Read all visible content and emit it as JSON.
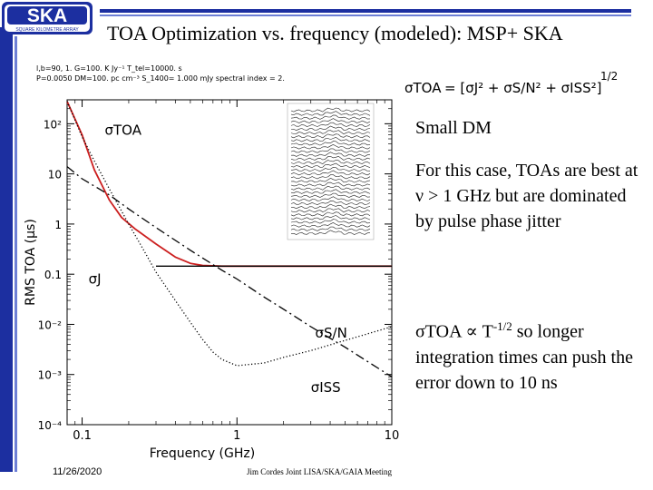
{
  "logo": {
    "text": "SKA",
    "subtext": "SQUARE KILOMETRE ARRAY"
  },
  "title": "TOA Optimization vs. frequency (modeled): MSP+ SKA",
  "formula": {
    "lhs": "σTOA",
    "rhs": "= [σJ² + σS/N² + σISS²]",
    "exponent": "1/2"
  },
  "side": {
    "heading": "Small DM",
    "para1": "For this case, TOAs are best at ν > 1 GHz but are dominated by pulse phase jitter",
    "para2_a": "σTOA ∝ T",
    "para2_sup": "-1/2",
    "para2_b": " so longer integration times can push the error down to 10 ns"
  },
  "footer": {
    "date": "11/26/2020",
    "middle": "Jim Cordes Joint LISA/SKA/GAIA Meeting"
  },
  "plot_header": {
    "line1": "l,b=90, 1.   G=100. K Jy⁻¹   T_tel=10000. s",
    "line2": "P=0.0050    DM=100. pc cm⁻³   S_1400=  1.000 mJy   spectral index = 2."
  },
  "chart_data": {
    "type": "line",
    "xscale": "log",
    "yscale": "log",
    "xlim": [
      0.08,
      10
    ],
    "ylim": [
      0.0001,
      300
    ],
    "xlabel": "Frequency (GHz)",
    "ylabel": "RMS TOA (μs)",
    "xticks": [
      {
        "v": 0.1,
        "label": "0.1"
      },
      {
        "v": 1,
        "label": "1"
      },
      {
        "v": 10,
        "label": "10"
      }
    ],
    "yticks": [
      {
        "v": 100,
        "label": "10²"
      },
      {
        "v": 10,
        "label": "10"
      },
      {
        "v": 1,
        "label": "1"
      },
      {
        "v": 0.1,
        "label": "0.1"
      },
      {
        "v": 0.01,
        "label": "10⁻²"
      },
      {
        "v": 0.001,
        "label": "10⁻³"
      },
      {
        "v": 0.0001,
        "label": "10⁻⁴"
      }
    ],
    "series": [
      {
        "name": "σTOA",
        "label": "σTOA",
        "color": "#cc1f1f",
        "style": "solid",
        "x": [
          0.08,
          0.1,
          0.12,
          0.15,
          0.18,
          0.22,
          0.3,
          0.4,
          0.5,
          0.6,
          0.8,
          1,
          1.5,
          2,
          3,
          5,
          7,
          10
        ],
        "y": [
          280,
          60,
          12,
          3.0,
          1.35,
          0.8,
          0.4,
          0.22,
          0.165,
          0.15,
          0.145,
          0.145,
          0.145,
          0.145,
          0.145,
          0.145,
          0.145,
          0.145
        ]
      },
      {
        "name": "σJ",
        "label": "σJ",
        "color": "#000000",
        "style": "flat",
        "x": [
          0.3,
          10
        ],
        "y": [
          0.145,
          0.145
        ]
      },
      {
        "name": "σS/N",
        "label": "σS/N",
        "color": "#000000",
        "style": "dashdot",
        "x": [
          0.08,
          0.1,
          0.15,
          0.2,
          0.3,
          0.5,
          0.8,
          1,
          1.5,
          2,
          3,
          5,
          7,
          10
        ],
        "y": [
          14,
          8,
          3.8,
          2.0,
          0.85,
          0.3,
          0.12,
          0.08,
          0.035,
          0.02,
          0.009,
          0.0035,
          0.0018,
          0.0009
        ]
      },
      {
        "name": "σISS",
        "label": "σISS",
        "color": "#000000",
        "style": "dotted",
        "x": [
          0.08,
          0.1,
          0.12,
          0.15,
          0.2,
          0.25,
          0.3,
          0.4,
          0.5,
          0.6,
          0.7,
          0.8,
          1,
          1.5,
          2,
          3,
          5,
          7,
          10
        ],
        "y": [
          280,
          55,
          18,
          5,
          1.0,
          0.3,
          0.11,
          0.03,
          0.011,
          0.005,
          0.0028,
          0.002,
          0.0015,
          0.0017,
          0.0022,
          0.003,
          0.0048,
          0.0065,
          0.009
        ]
      }
    ],
    "annotations": [
      {
        "text": "σTOA",
        "x": 0.14,
        "y": 60
      },
      {
        "text": "σJ",
        "x": 0.11,
        "y": 0.065
      },
      {
        "text": "σS/N",
        "x": 3.2,
        "y": 0.0055
      },
      {
        "text": "σISS",
        "x": 3.0,
        "y": 0.00045
      }
    ]
  }
}
